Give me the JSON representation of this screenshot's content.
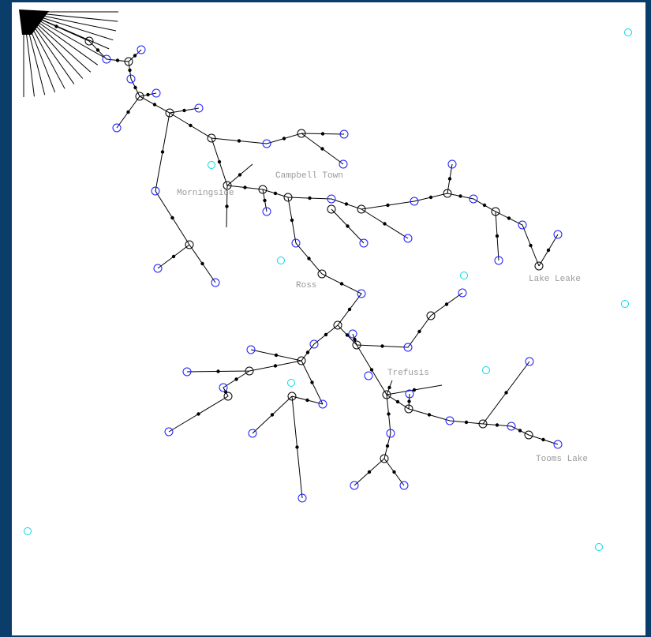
{
  "map_labels": [
    "Campbell Town",
    "Morningside",
    "Ross",
    "Lake Leake",
    "Trefusis",
    "Tooms Lake"
  ]
}
